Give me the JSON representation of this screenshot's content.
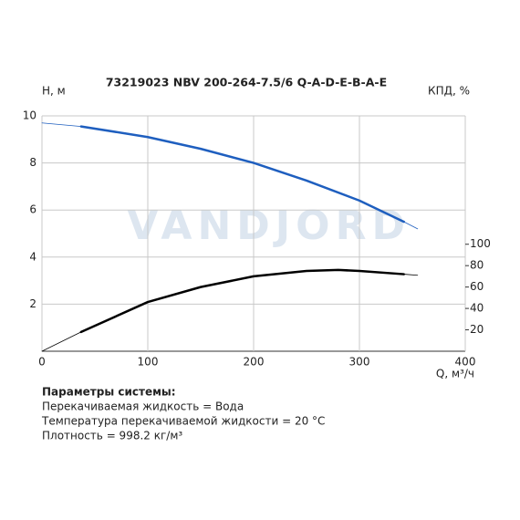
{
  "chart_data": {
    "type": "line",
    "title": "73219023 NBV 200-264-7.5/6 Q-A-D-E-B-A-E",
    "ylabel": "H, м",
    "y2label": "КПД, %",
    "xlabel": "Q, м³/ч",
    "watermark": "VANDJORD",
    "xlim": [
      0,
      400
    ],
    "xticks": [
      0,
      100,
      200,
      300,
      400
    ],
    "ylim": [
      0,
      10
    ],
    "yticks": [
      2,
      4,
      6,
      8,
      10
    ],
    "y2lim": [
      0,
      220
    ],
    "y2ticks": [
      20,
      40,
      60,
      80,
      100
    ],
    "grid": true,
    "series": [
      {
        "color": "#1f5fbf",
        "width": 2.5,
        "x": [
          37,
          100,
          150,
          200,
          250,
          300,
          342
        ],
        "values": [
          9.55,
          9.1,
          8.6,
          8.0,
          7.25,
          6.4,
          5.5
        ]
      },
      {
        "color": "#1f5fbf",
        "width": 0.8,
        "x": [
          0,
          37,
          100,
          150,
          200,
          250,
          300,
          342,
          355
        ],
        "values": [
          9.7,
          9.55,
          9.1,
          8.6,
          8.0,
          7.25,
          6.4,
          5.5,
          5.2
        ]
      },
      {
        "color": "#000000",
        "width": 2.5,
        "axis": "y2",
        "x": [
          37,
          100,
          150,
          200,
          250,
          280,
          300,
          342
        ],
        "values": [
          18,
          46,
          60,
          70,
          75,
          76,
          75,
          72
        ]
      },
      {
        "color": "#000000",
        "width": 0.8,
        "axis": "y2",
        "x": [
          0,
          37,
          100,
          150,
          200,
          250,
          280,
          300,
          342,
          355
        ],
        "values": [
          0,
          18,
          46,
          60,
          70,
          75,
          76,
          75,
          72,
          71
        ]
      }
    ]
  },
  "params": {
    "title": "Параметры системы:",
    "lines": [
      "Перекачиваемая жидкость = Вода",
      "Температура перекачиваемой жидкости = 20 °C",
      "Плотность = 998.2 кг/м³"
    ]
  }
}
